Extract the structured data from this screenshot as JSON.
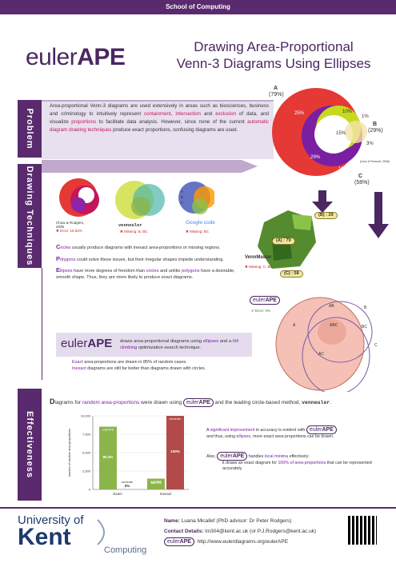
{
  "header": {
    "dept": "School of Computing"
  },
  "logo": {
    "light": "euler",
    "bold": "APE"
  },
  "title": {
    "line1": "Drawing Area-Proportional",
    "line2": "Venn-3 Diagrams Using Ellipses"
  },
  "sections": {
    "problem": "Problem",
    "drawing": "Drawing Techniques",
    "effectiveness": "Effectiveness"
  },
  "problem": {
    "t1": "Area-proportional Venn-3 diagrams are used extensively in areas such as biosciences, business and criminology to intuitively represent ",
    "h1": "containment",
    "t2": ", ",
    "h2": "intersection",
    "t3": " and ",
    "h3": "exclusion",
    "t4": " of data, and visualize ",
    "h4": "proportions",
    "t5": " to facilitate data analysis. However, since none of the current ",
    "h5": "automatic diagram drawing techniques",
    "t6": " produce exact proportions, confusing diagrams are used."
  },
  "main_venn": {
    "a_label": "A",
    "a_pct": "(79%)",
    "b_label": "B",
    "b_pct": "(29%)",
    "c_label": "C",
    "c_pct": "(58%)",
    "regions": [
      "25%",
      "10%",
      "1%",
      "15%",
      "3%",
      "29%",
      "11%"
    ],
    "source": "(Lenz & Fermont, 2006)"
  },
  "techniques": {
    "chow_caption": "Chow & Rodgers, 2005",
    "chow_error": "Error: 16.64%",
    "venneuler_name": "venneuler",
    "venneuler_missing": "Missing: B, BC",
    "google_name": "Google code",
    "google_missing": "Missing: BC",
    "google_legend": [
      "A",
      "B",
      "C"
    ],
    "vennmaster_name": "VennMaster",
    "vennmaster_missing": "Missing: C, BC",
    "vm_a": "(A) : 79",
    "vm_b": "(B) : 29",
    "vm_c": "(C) : 58",
    "eulerape_error": "Error: 0%",
    "ellipse_labels": [
      "AB",
      "B",
      "A",
      "ABC",
      "BC",
      "C",
      "AC"
    ]
  },
  "bullets": {
    "c_big": "C",
    "c_rest": "ircles",
    "c_text": " usually produce diagrams with inexact area-proportions or missing regions.",
    "p_big": "P",
    "p_rest": "olygons",
    "p_text": " could solve these issues, but their irregular shapes impede understanding.",
    "e_big": "E",
    "e_rest": "llipses",
    "e_text1": " have more degrees of freedom than ",
    "e_circles": "circles",
    "e_text2": " and unlike ",
    "e_polygons": "polygons",
    "e_text3": " have a desirable, smooth shape. Thus, they are more likely to produce exact diagrams."
  },
  "ape": {
    "t1": "draws area-proportional diagrams using ",
    "h1": "ellipses",
    "t2": " and a ",
    "h2": "hill climbing",
    "t3": " optimization search technique.",
    "exact_h": "Exact",
    "exact_t": " area-proportions are drawn in 85% of random cases.",
    "inexact_h": "Inexact",
    "inexact_t": " diagrams are still far better than diagrams drawn with circles."
  },
  "effectiveness": {
    "d_big": "D",
    "t1": "iagrams for ",
    "h1": "random area-proportions",
    "t2": " were drawn using",
    "t3": " and the leading circle-based method, ",
    "method": "venneuler",
    "r1a": "A ",
    "r1h": "significant improvement",
    "r1b": " in accuracy is evident with",
    "r2a": "and thus, using ",
    "r2h": "ellipses",
    "r2b": ", more exact area-proportions can be drawn.",
    "r3a": "Also, ",
    "r3b": " handles ",
    "r3h": "local minima",
    "r3c": " effectively:",
    "r4a": "it draws an exact diagram for ",
    "r4h": "100% of area-proportions",
    "r4b": " that can be represented accurately."
  },
  "chart_data": {
    "type": "bar",
    "categories": [
      "Exact",
      "Inexact"
    ],
    "ylabel": "number of random area-proportions",
    "ylim": [
      0,
      10000
    ],
    "yticks": [
      "0",
      "2,500",
      "5,000",
      "7,500",
      "10,000"
    ],
    "series": [
      {
        "name": "eulerAPE",
        "values": [
          8530,
          1470
        ],
        "labels": [
          "85.3%",
          "14.7%"
        ],
        "color": "#8bb54a"
      },
      {
        "name": "venneuler",
        "values": [
          0,
          10000
        ],
        "labels": [
          "0%",
          "100%"
        ],
        "color": "#b34a4a"
      }
    ]
  },
  "footer": {
    "univ": "University of",
    "kent": "Kent",
    "computing": "Computing",
    "name_label": "Name:",
    "name": "Luana Micallef  (PhD advisor: Dr Peter Rodgers)",
    "contact_label": "Contact Details:",
    "contact": "lm304@kent.ac.uk  (or  P.J.Rodgers@kent.ac.uk)",
    "url": ": http://www.eulerdiagrams.org/eulerAPE"
  }
}
